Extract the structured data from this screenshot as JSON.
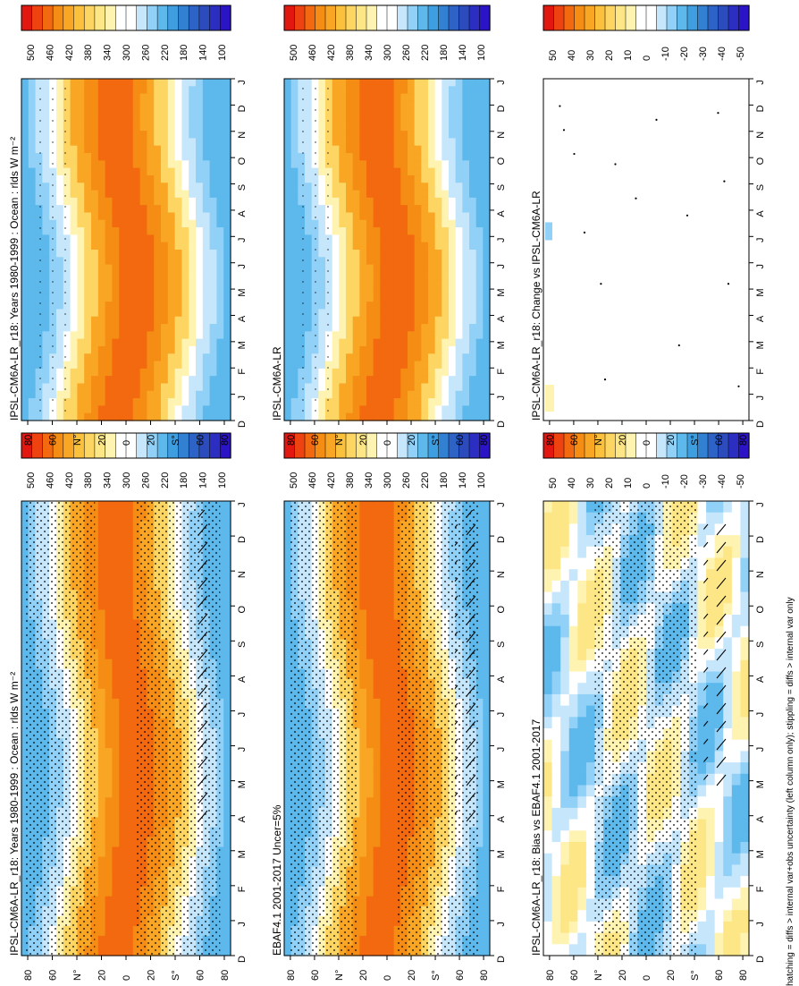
{
  "figure": {
    "caption": "hatching = diffs > internal var+obs uncertainty (left column only); stippling = diffs > internal var only"
  },
  "scales": {
    "abs": {
      "ticks": [
        "500",
        "460",
        "420",
        "380",
        "340",
        "300",
        "260",
        "220",
        "180",
        "140",
        "100"
      ],
      "colors": [
        "#e2170f",
        "#ee4210",
        "#f3690f",
        "#f58d14",
        "#f8a623",
        "#fbc13c",
        "#fcd563",
        "#fde686",
        "#fff3b2",
        "#ffffff",
        "#ffffff",
        "#c6e6fb",
        "#91d1f7",
        "#5db8ec",
        "#3e9ee0",
        "#3180d2",
        "#2d63c6",
        "#2c4cbd",
        "#2b2ec0",
        "#2a14c6"
      ]
    },
    "diff": {
      "ticks": [
        "50",
        "40",
        "30",
        "20",
        "10",
        "0",
        "-10",
        "-20",
        "-30",
        "-40",
        "-50"
      ],
      "colors": [
        "#e2170f",
        "#ee4210",
        "#f3690f",
        "#f58d14",
        "#f8a623",
        "#fbc13c",
        "#fcd563",
        "#fde686",
        "#fff3b2",
        "#ffffff",
        "#ffffff",
        "#c6e6fb",
        "#91d1f7",
        "#5db8ec",
        "#3e9ee0",
        "#3180d2",
        "#2d63c6",
        "#2c4cbd",
        "#2b2ec0",
        "#2a14c6"
      ]
    }
  },
  "axis_labels": {
    "months": [
      "D",
      "J",
      "F",
      "M",
      "A",
      "M",
      "J",
      "J",
      "A",
      "S",
      "O",
      "N",
      "D",
      "J"
    ],
    "lats": [
      "80",
      "60",
      "N°",
      "20",
      "0",
      "20",
      "S°",
      "60",
      "80"
    ]
  },
  "chart_data": [
    {
      "type": "heatmap",
      "title": "IPSL-CM6A-LR_r18: Years 1980-1999 : Ocean : rlds W m⁻²",
      "kind": "model",
      "hatched": true,
      "xlabel": "",
      "ylabel": "",
      "zlim": [
        100,
        500
      ],
      "x": [
        "D",
        "J",
        "F",
        "M",
        "A",
        "M",
        "J",
        "J",
        "A",
        "S",
        "O",
        "N",
        "D",
        "J"
      ],
      "y": [
        "80",
        "60",
        "N°",
        "20",
        "0",
        "20",
        "S°",
        "60",
        "80"
      ]
    },
    {
      "type": "heatmap",
      "title": "IPSL-CM6A-LR_r18: Years 1980-1999 : Ocean : rlds W m⁻²",
      "kind": "model",
      "hatched": false,
      "xlabel": "",
      "ylabel": "",
      "zlim": [
        100,
        500
      ],
      "x": [
        "D",
        "J",
        "F",
        "M",
        "A",
        "M",
        "J",
        "J",
        "A",
        "S",
        "O",
        "N",
        "D",
        "J"
      ],
      "y": [
        "80",
        "60",
        "N°",
        "20",
        "0",
        "20",
        "S°",
        "60",
        "80"
      ]
    },
    {
      "type": "heatmap",
      "title": "EBAF4.1 2001-2017 Uncer=5%",
      "kind": "obs",
      "hatched": true,
      "xlabel": "",
      "ylabel": "",
      "zlim": [
        100,
        500
      ],
      "x": [
        "D",
        "J",
        "F",
        "M",
        "A",
        "M",
        "J",
        "J",
        "A",
        "S",
        "O",
        "N",
        "D",
        "J"
      ],
      "y": [
        "80",
        "60",
        "N°",
        "20",
        "0",
        "20",
        "S°",
        "60",
        "80"
      ]
    },
    {
      "type": "heatmap",
      "title": "IPSL-CM6A-LR",
      "kind": "obs",
      "hatched": false,
      "xlabel": "",
      "ylabel": "",
      "zlim": [
        100,
        500
      ],
      "x": [
        "D",
        "J",
        "F",
        "M",
        "A",
        "M",
        "J",
        "J",
        "A",
        "S",
        "O",
        "N",
        "D",
        "J"
      ],
      "y": [
        "80",
        "60",
        "N°",
        "20",
        "0",
        "20",
        "S°",
        "60",
        "80"
      ]
    },
    {
      "type": "heatmap",
      "title": "IPSL-CM6A-LR_r18: Bias vs EBAF4.1 2001-2017",
      "kind": "bias",
      "hatched": true,
      "xlabel": "",
      "ylabel": "",
      "zlim": [
        -50,
        50
      ],
      "x": [
        "D",
        "J",
        "F",
        "M",
        "A",
        "M",
        "J",
        "J",
        "A",
        "S",
        "O",
        "N",
        "D",
        "J"
      ],
      "y": [
        "80",
        "60",
        "N°",
        "20",
        "0",
        "20",
        "S°",
        "60",
        "80"
      ]
    },
    {
      "type": "heatmap",
      "title": "IPSL-CM6A-LR_r18: Change vs IPSL-CM6A-LR",
      "kind": "change",
      "hatched": false,
      "xlabel": "",
      "ylabel": "",
      "zlim": [
        -50,
        50
      ],
      "x": [
        "D",
        "J",
        "F",
        "M",
        "A",
        "M",
        "J",
        "J",
        "A",
        "S",
        "O",
        "N",
        "D",
        "J"
      ],
      "y": [
        "80",
        "60",
        "N°",
        "20",
        "0",
        "20",
        "S°",
        "60",
        "80"
      ]
    }
  ]
}
